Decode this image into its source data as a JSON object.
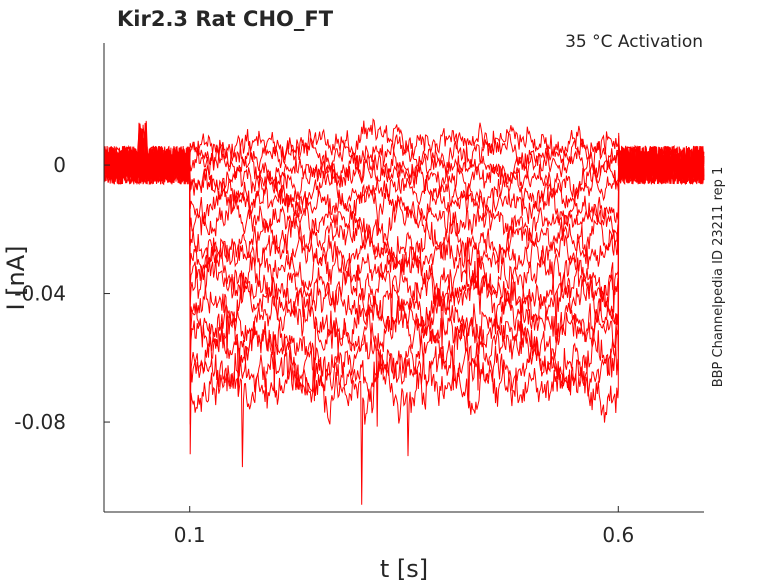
{
  "chart_data": {
    "type": "line",
    "title": "Kir2.3  Rat  CHO_FT",
    "subtitle": "35 °C  Activation",
    "side_label": "BBP Channelpedia ID 23211 rep 1",
    "xlabel": "t [s]",
    "ylabel": "I [nA]",
    "xlim": [
      0.0,
      0.7
    ],
    "ylim": [
      -0.108,
      0.038
    ],
    "x_ticks": [
      0.1,
      0.6
    ],
    "x_tick_labels": [
      "0.1",
      "0.6"
    ],
    "y_ticks": [
      0,
      -0.04,
      -0.08
    ],
    "y_tick_labels": [
      "0",
      "-0.04",
      "-0.08"
    ],
    "grid": false,
    "legend": "none",
    "series_color": "#ff0000",
    "step_start_s": 0.1,
    "step_end_s": 0.6,
    "series": [
      {
        "values": [
          0.0,
          0.007
        ]
      },
      {
        "values": [
          0.0,
          0.004
        ]
      },
      {
        "values": [
          0.0,
          0.0
        ]
      },
      {
        "values": [
          0.0,
          -0.004
        ]
      },
      {
        "values": [
          0.0,
          -0.008
        ]
      },
      {
        "values": [
          0.0,
          -0.013
        ]
      },
      {
        "values": [
          0.0,
          -0.018
        ]
      },
      {
        "values": [
          0.0,
          -0.023
        ]
      },
      {
        "values": [
          0.0,
          -0.028
        ]
      },
      {
        "values": [
          0.0,
          -0.033
        ]
      },
      {
        "values": [
          0.0,
          -0.038
        ]
      },
      {
        "values": [
          0.0,
          -0.043
        ]
      },
      {
        "values": [
          0.0,
          -0.048
        ]
      },
      {
        "values": [
          0.0,
          -0.053
        ]
      },
      {
        "values": [
          0.0,
          -0.058
        ]
      },
      {
        "values": [
          0.0,
          -0.064
        ]
      },
      {
        "values": [
          0.0,
          -0.07
        ]
      }
    ]
  }
}
